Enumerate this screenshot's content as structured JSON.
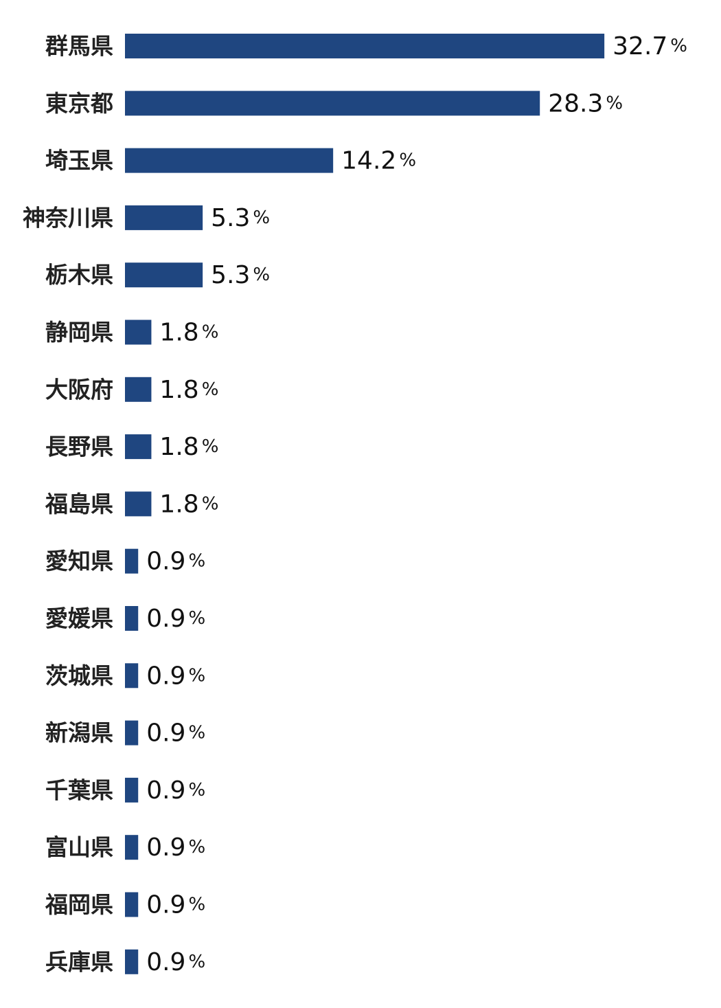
{
  "chart_data": {
    "type": "bar",
    "orientation": "horizontal",
    "categories": [
      "群馬県",
      "東京都",
      "埼玉県",
      "神奈川県",
      "栃木県",
      "静岡県",
      "大阪府",
      "長野県",
      "福島県",
      "愛知県",
      "愛媛県",
      "茨城県",
      "新潟県",
      "千葉県",
      "富山県",
      "福岡県",
      "兵庫県"
    ],
    "values": [
      32.7,
      28.3,
      14.2,
      5.3,
      5.3,
      1.8,
      1.8,
      1.8,
      1.8,
      0.9,
      0.9,
      0.9,
      0.9,
      0.9,
      0.9,
      0.9,
      0.9
    ],
    "value_labels": [
      "32.7",
      "28.3",
      "14.2",
      "5.3",
      "5.3",
      "1.8",
      "1.8",
      "1.8",
      "1.8",
      "0.9",
      "0.9",
      "0.9",
      "0.9",
      "0.9",
      "0.9",
      "0.9",
      "0.9"
    ],
    "unit": "%",
    "bar_color": "#1f4680",
    "title": "",
    "xlabel": "",
    "ylabel": "",
    "grid": false,
    "legend": "none"
  }
}
